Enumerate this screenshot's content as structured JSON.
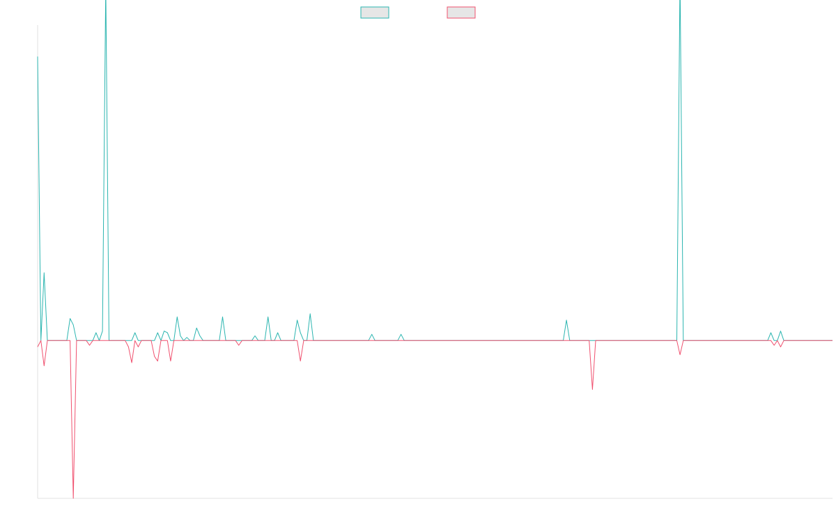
{
  "chart_data": {
    "type": "line",
    "title": "",
    "xlabel": "",
    "ylabel": "",
    "legend": {
      "position": "top-center",
      "entries": [
        {
          "name": "",
          "color": "#2bb5b0"
        },
        {
          "name": "",
          "color": "#f0506e"
        }
      ]
    },
    "x_range": [
      0,
      245
    ],
    "ylim": [
      -100,
      200
    ],
    "grid": false,
    "series": [
      {
        "name": "",
        "color": "#2bb5b0",
        "points": [
          [
            0,
            180
          ],
          [
            2,
            43
          ],
          [
            10,
            14
          ],
          [
            11,
            10
          ],
          [
            18,
            5
          ],
          [
            20,
            6
          ],
          [
            21,
            225
          ],
          [
            30,
            5
          ],
          [
            37,
            5
          ],
          [
            39,
            6
          ],
          [
            40,
            5
          ],
          [
            43,
            15
          ],
          [
            44,
            3
          ],
          [
            46,
            2
          ],
          [
            49,
            8
          ],
          [
            50,
            3
          ],
          [
            57,
            15
          ],
          [
            67,
            3
          ],
          [
            71,
            15
          ],
          [
            74,
            5
          ],
          [
            80,
            13
          ],
          [
            81,
            5
          ],
          [
            84,
            17
          ],
          [
            103,
            4
          ],
          [
            112,
            4
          ],
          [
            163,
            13
          ],
          [
            198,
            230
          ],
          [
            226,
            5
          ],
          [
            229,
            6
          ]
        ]
      },
      {
        "name": "",
        "color": "#f0506e",
        "points": [
          [
            0,
            -4
          ],
          [
            2,
            -16
          ],
          [
            11,
            -100
          ],
          [
            16,
            -3
          ],
          [
            28,
            -4
          ],
          [
            29,
            -14
          ],
          [
            31,
            -4
          ],
          [
            36,
            -10
          ],
          [
            37,
            -13
          ],
          [
            41,
            -13
          ],
          [
            62,
            -3
          ],
          [
            81,
            -13
          ],
          [
            171,
            -31
          ],
          [
            198,
            -9
          ],
          [
            227,
            -3
          ],
          [
            229,
            -4
          ]
        ]
      }
    ]
  }
}
